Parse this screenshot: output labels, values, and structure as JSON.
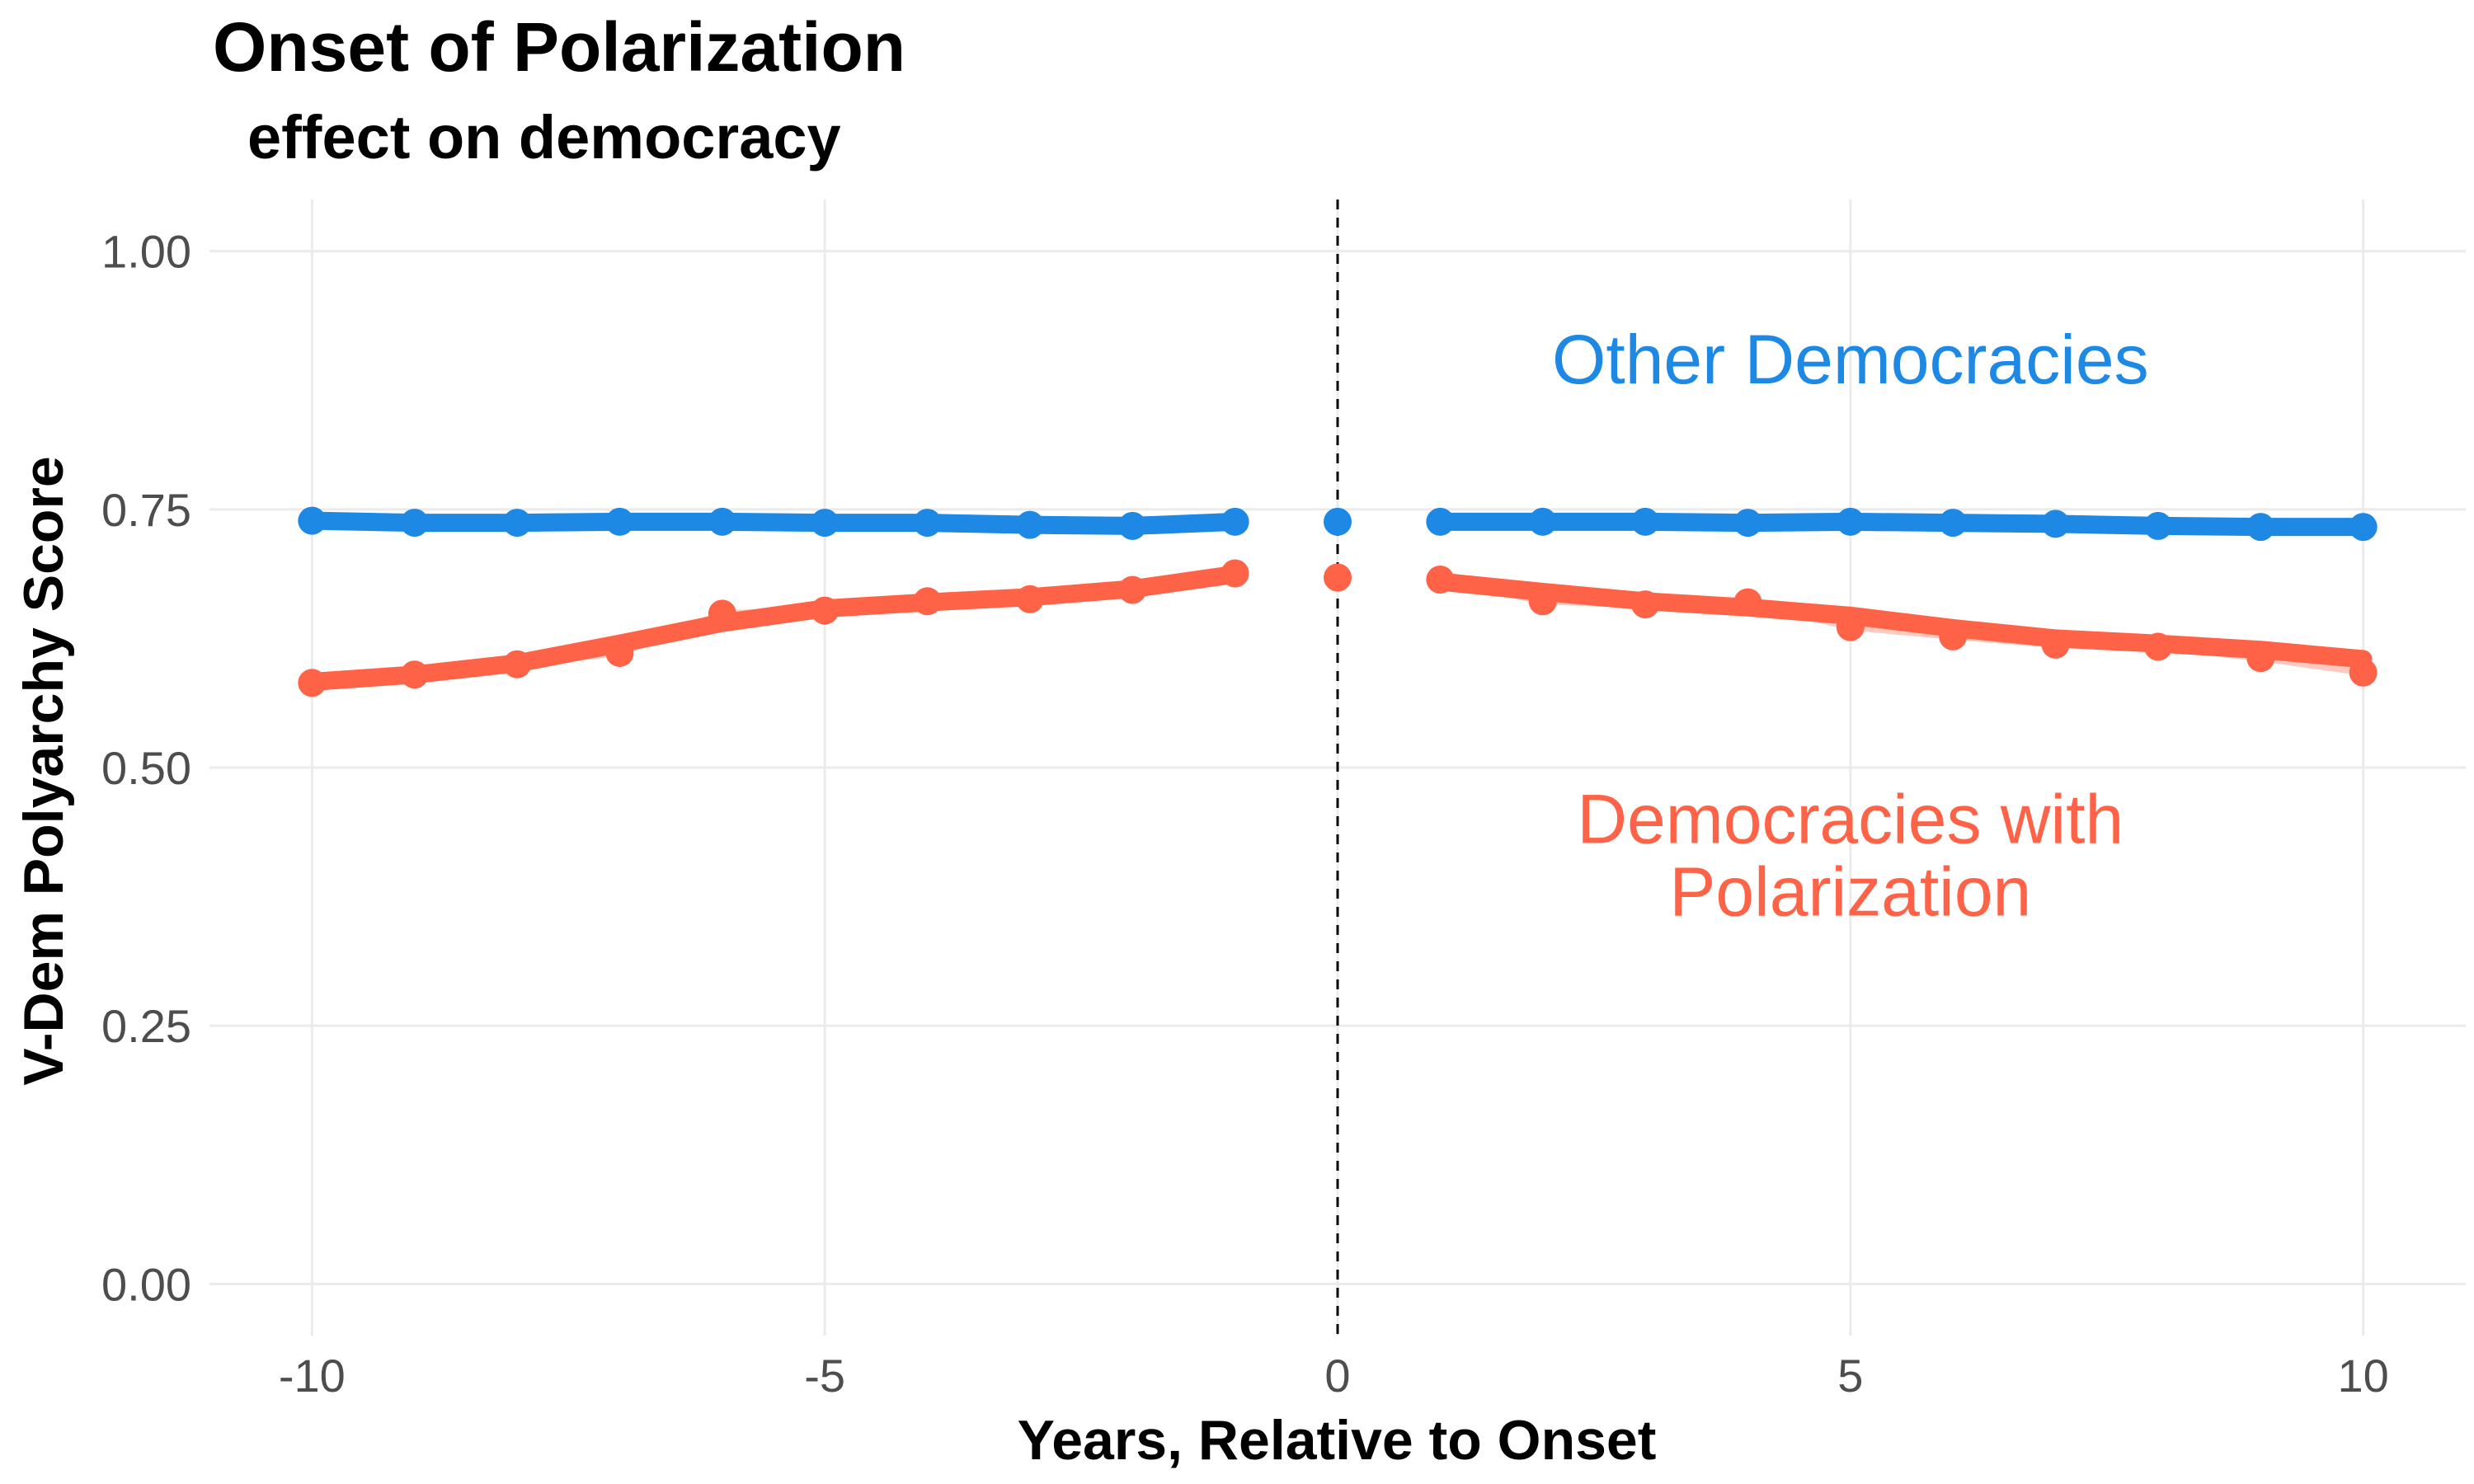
{
  "chart_data": {
    "type": "line",
    "title": "Onset of Polarization",
    "subtitle": "effect on democracy",
    "xlabel": "Years, Relative to Onset",
    "ylabel": "V-Dem Polyarchy Score",
    "xlim": [
      -11,
      11
    ],
    "ylim": [
      -0.05,
      1.05
    ],
    "x_ticks": [
      -10,
      -5,
      0,
      5,
      10
    ],
    "x_tick_labels": [
      "-10",
      "-5",
      "0",
      "5",
      "10"
    ],
    "y_ticks": [
      0,
      0.25,
      0.5,
      0.75,
      1.0
    ],
    "y_tick_labels": [
      "0.00",
      "0.25",
      "0.50",
      "0.75",
      "1.00"
    ],
    "grid": true,
    "vline": {
      "x": 0,
      "style": "dashed",
      "color": "#000000"
    },
    "series": [
      {
        "name": "Other Democracies",
        "color": "#1e88e5",
        "x": [
          -10,
          -9,
          -8,
          -7,
          -6,
          -5,
          -4,
          -3,
          -2,
          -1,
          0,
          1,
          2,
          3,
          4,
          5,
          6,
          7,
          8,
          9,
          10
        ],
        "values": [
          0.739,
          0.737,
          0.737,
          0.738,
          0.738,
          0.737,
          0.737,
          0.735,
          0.734,
          0.738,
          0.738,
          0.738,
          0.738,
          0.738,
          0.737,
          0.738,
          0.737,
          0.736,
          0.734,
          0.733,
          0.733
        ],
        "label_lines": [
          "Other Democracies"
        ]
      },
      {
        "name": "Democracies with Polarization",
        "color": "#ff6347",
        "x": [
          -10,
          -9,
          -8,
          -7,
          -6,
          -5,
          -4,
          -3,
          -2,
          -1,
          0,
          1,
          2,
          3,
          4,
          5,
          6,
          7,
          8,
          9,
          10
        ],
        "values": [
          0.582,
          0.59,
          0.6,
          0.611,
          0.649,
          0.652,
          0.661,
          0.663,
          0.672,
          0.688,
          0.684,
          0.682,
          0.661,
          0.658,
          0.66,
          0.636,
          0.627,
          0.619,
          0.617,
          0.606,
          0.592
        ],
        "smooth_pre": [
          0.583,
          0.59,
          0.601,
          0.62,
          0.64,
          0.654,
          0.66,
          0.665,
          0.673,
          0.687
        ],
        "smooth_post": [
          0.68,
          0.67,
          0.661,
          0.655,
          0.647,
          0.635,
          0.625,
          0.62,
          0.614,
          0.605,
          0.592
        ],
        "label_lines": [
          "Democracies with",
          "Polarization"
        ]
      }
    ],
    "series_label_positions": [
      {
        "x": 5,
        "y": 0.872
      },
      {
        "x": 5,
        "y": 0.427
      }
    ]
  }
}
